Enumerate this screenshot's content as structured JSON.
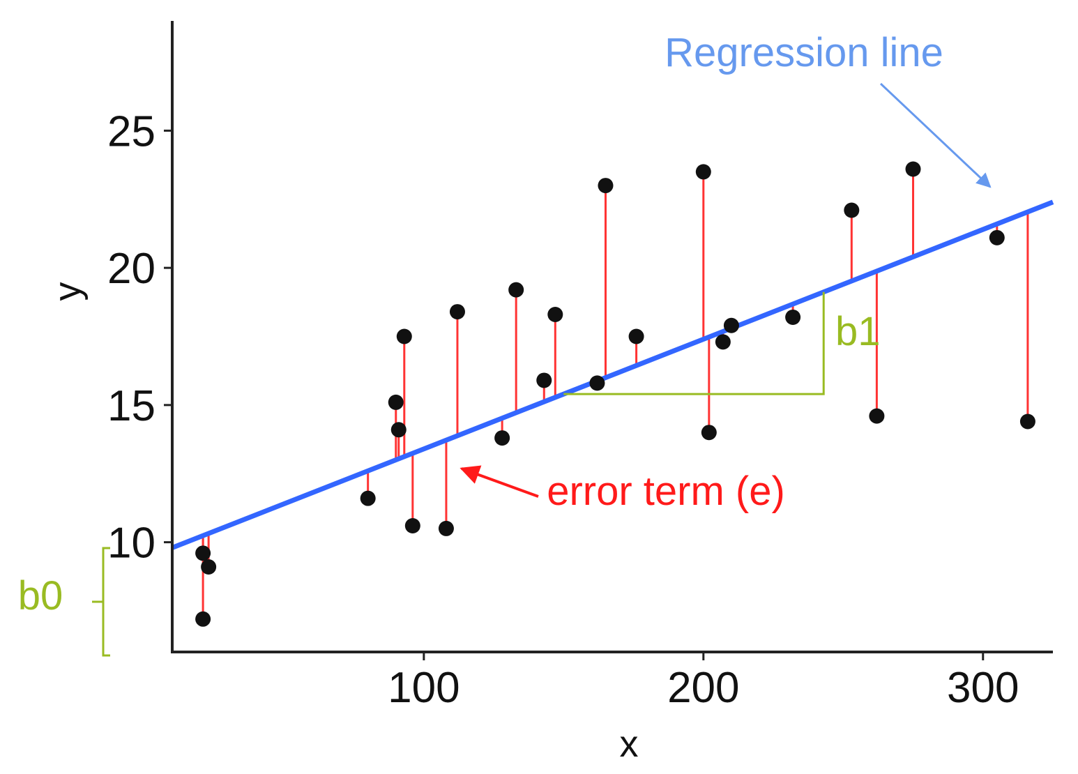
{
  "chart_data": {
    "type": "scatter",
    "xlabel": "x",
    "ylabel": "y",
    "xlim": [
      10,
      325
    ],
    "ylim": [
      6,
      29
    ],
    "xticks": [
      100,
      200,
      300
    ],
    "yticks": [
      10,
      15,
      20,
      25
    ],
    "grid": false,
    "regression": {
      "intercept": 9.4,
      "slope": 0.04
    },
    "points": [
      {
        "x": 21,
        "y": 7.2
      },
      {
        "x": 21,
        "y": 9.6
      },
      {
        "x": 23,
        "y": 9.1
      },
      {
        "x": 80,
        "y": 11.6
      },
      {
        "x": 90,
        "y": 15.1
      },
      {
        "x": 91,
        "y": 14.1
      },
      {
        "x": 93,
        "y": 17.5
      },
      {
        "x": 96,
        "y": 10.6
      },
      {
        "x": 108,
        "y": 10.5
      },
      {
        "x": 112,
        "y": 18.4
      },
      {
        "x": 128,
        "y": 13.8
      },
      {
        "x": 133,
        "y": 19.2
      },
      {
        "x": 143,
        "y": 15.9
      },
      {
        "x": 147,
        "y": 18.3
      },
      {
        "x": 162,
        "y": 15.8
      },
      {
        "x": 165,
        "y": 23.0
      },
      {
        "x": 176,
        "y": 17.5
      },
      {
        "x": 200,
        "y": 23.5
      },
      {
        "x": 202,
        "y": 14.0
      },
      {
        "x": 207,
        "y": 17.3
      },
      {
        "x": 210,
        "y": 17.9
      },
      {
        "x": 232,
        "y": 18.2
      },
      {
        "x": 253,
        "y": 22.1
      },
      {
        "x": 262,
        "y": 14.6
      },
      {
        "x": 275,
        "y": 23.6
      },
      {
        "x": 305,
        "y": 21.1
      },
      {
        "x": 316,
        "y": 14.4
      }
    ],
    "colors": {
      "regression_line": "#3366ff",
      "points": "#111111",
      "error_segments": "#ff3333",
      "annotation_green": "#99bb22",
      "annotation_blue": "#6699ee",
      "annotation_red": "#ff1a1a",
      "axis": "#222222"
    },
    "annotations": {
      "regression_line_label": "Regression line",
      "error_term_label": "error term (e)",
      "intercept_label": "b0",
      "slope_label": "b1"
    }
  }
}
